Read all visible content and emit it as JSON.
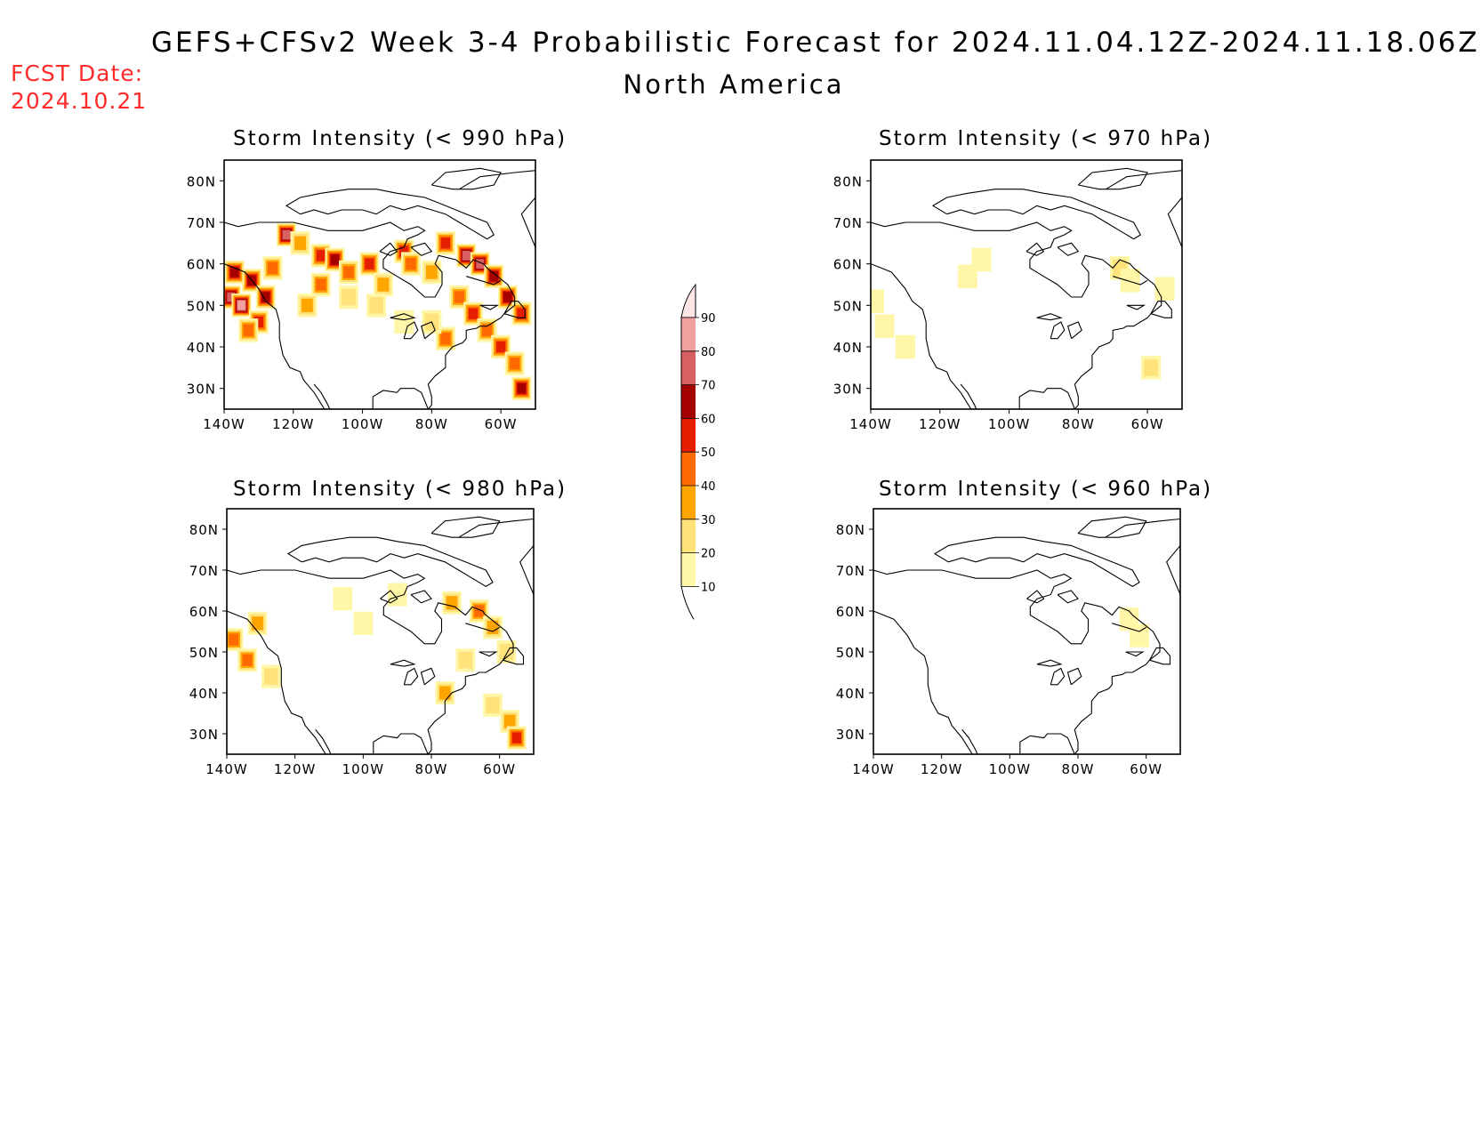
{
  "header": {
    "title": "GEFS+CFSv2 Week 3-4 Probabilistic Forecast for 2024.11.04.12Z-2024.11.18.06Z",
    "subtitle": "North America",
    "fcst_label": "FCST Date:",
    "fcst_date": "2024.10.21"
  },
  "axes": {
    "lat_labels": [
      "80N",
      "70N",
      "60N",
      "50N",
      "40N",
      "30N"
    ],
    "lat_values": [
      80,
      70,
      60,
      50,
      40,
      30
    ],
    "lon_labels": [
      "140W",
      "120W",
      "100W",
      "80W",
      "60W"
    ],
    "lon_values": [
      -140,
      -120,
      -100,
      -80,
      -60
    ],
    "lon_range": [
      -140,
      -50
    ],
    "lat_range": [
      25,
      85
    ]
  },
  "colorbar": {
    "levels": [
      10,
      20,
      30,
      40,
      50,
      60,
      70,
      80,
      90
    ],
    "labels": [
      "10",
      "20",
      "30",
      "40",
      "50",
      "60",
      "70",
      "80",
      "90"
    ],
    "colors": [
      "#fff6a8",
      "#ffe27a",
      "#ffa500",
      "#ff6a00",
      "#e61e00",
      "#a50000",
      "#d96060",
      "#f2a0a0",
      "#ffe6e6"
    ]
  },
  "panels": [
    {
      "id": "p990",
      "title": "Storm Intensity (< 990 hPa)"
    },
    {
      "id": "p970",
      "title": "Storm Intensity (< 970 hPa)"
    },
    {
      "id": "p980",
      "title": "Storm Intensity (< 980 hPa)"
    },
    {
      "id": "p960",
      "title": "Storm Intensity (< 960 hPa)"
    }
  ],
  "map_data": {
    "p990": [
      {
        "lon": -138,
        "lat": 52,
        "v": 75
      },
      {
        "lon": -135,
        "lat": 50,
        "v": 80
      },
      {
        "lon": -132,
        "lat": 56,
        "v": 65
      },
      {
        "lon": -137,
        "lat": 58,
        "v": 62
      },
      {
        "lon": -130,
        "lat": 46,
        "v": 55
      },
      {
        "lon": -128,
        "lat": 52,
        "v": 60
      },
      {
        "lon": -133,
        "lat": 44,
        "v": 45
      },
      {
        "lon": -126,
        "lat": 59,
        "v": 48
      },
      {
        "lon": -122,
        "lat": 67,
        "v": 72
      },
      {
        "lon": -118,
        "lat": 65,
        "v": 35
      },
      {
        "lon": -112,
        "lat": 62,
        "v": 58
      },
      {
        "lon": -108,
        "lat": 61,
        "v": 65
      },
      {
        "lon": -104,
        "lat": 58,
        "v": 42
      },
      {
        "lon": -98,
        "lat": 60,
        "v": 50
      },
      {
        "lon": -94,
        "lat": 55,
        "v": 35
      },
      {
        "lon": -88,
        "lat": 63,
        "v": 55
      },
      {
        "lon": -86,
        "lat": 60,
        "v": 48
      },
      {
        "lon": -80,
        "lat": 58,
        "v": 38
      },
      {
        "lon": -76,
        "lat": 65,
        "v": 55
      },
      {
        "lon": -70,
        "lat": 62,
        "v": 70
      },
      {
        "lon": -66,
        "lat": 60,
        "v": 78
      },
      {
        "lon": -62,
        "lat": 57,
        "v": 60
      },
      {
        "lon": -58,
        "lat": 52,
        "v": 62
      },
      {
        "lon": -54,
        "lat": 48,
        "v": 55
      },
      {
        "lon": -72,
        "lat": 52,
        "v": 45
      },
      {
        "lon": -68,
        "lat": 48,
        "v": 50
      },
      {
        "lon": -64,
        "lat": 44,
        "v": 42
      },
      {
        "lon": -60,
        "lat": 40,
        "v": 55
      },
      {
        "lon": -56,
        "lat": 36,
        "v": 48
      },
      {
        "lon": -54,
        "lat": 30,
        "v": 62
      },
      {
        "lon": -76,
        "lat": 42,
        "v": 40
      },
      {
        "lon": -80,
        "lat": 46,
        "v": 28
      },
      {
        "lon": -88,
        "lat": 46,
        "v": 18
      },
      {
        "lon": -96,
        "lat": 50,
        "v": 22
      },
      {
        "lon": -104,
        "lat": 52,
        "v": 28
      },
      {
        "lon": -112,
        "lat": 55,
        "v": 45
      },
      {
        "lon": -116,
        "lat": 50,
        "v": 32
      }
    ],
    "p970": [
      {
        "lon": -139,
        "lat": 51,
        "v": 15
      },
      {
        "lon": -136,
        "lat": 45,
        "v": 14
      },
      {
        "lon": -130,
        "lat": 40,
        "v": 12
      },
      {
        "lon": -108,
        "lat": 61,
        "v": 13
      },
      {
        "lon": -112,
        "lat": 57,
        "v": 11
      },
      {
        "lon": -68,
        "lat": 59,
        "v": 20
      },
      {
        "lon": -65,
        "lat": 56,
        "v": 16
      },
      {
        "lon": -55,
        "lat": 54,
        "v": 14
      },
      {
        "lon": -59,
        "lat": 35,
        "v": 22
      }
    ],
    "p980": [
      {
        "lon": -138,
        "lat": 53,
        "v": 45
      },
      {
        "lon": -134,
        "lat": 48,
        "v": 40
      },
      {
        "lon": -131,
        "lat": 57,
        "v": 30
      },
      {
        "lon": -127,
        "lat": 44,
        "v": 20
      },
      {
        "lon": -106,
        "lat": 63,
        "v": 18
      },
      {
        "lon": -100,
        "lat": 57,
        "v": 15
      },
      {
        "lon": -90,
        "lat": 64,
        "v": 16
      },
      {
        "lon": -74,
        "lat": 62,
        "v": 35
      },
      {
        "lon": -66,
        "lat": 60,
        "v": 48
      },
      {
        "lon": -62,
        "lat": 56,
        "v": 38
      },
      {
        "lon": -58,
        "lat": 50,
        "v": 25
      },
      {
        "lon": -70,
        "lat": 48,
        "v": 22
      },
      {
        "lon": -76,
        "lat": 40,
        "v": 30
      },
      {
        "lon": -62,
        "lat": 37,
        "v": 25
      },
      {
        "lon": -57,
        "lat": 33,
        "v": 35
      },
      {
        "lon": -55,
        "lat": 29,
        "v": 55
      }
    ],
    "p960": [
      {
        "lon": -65,
        "lat": 58,
        "v": 14
      },
      {
        "lon": -62,
        "lat": 54,
        "v": 11
      }
    ]
  }
}
